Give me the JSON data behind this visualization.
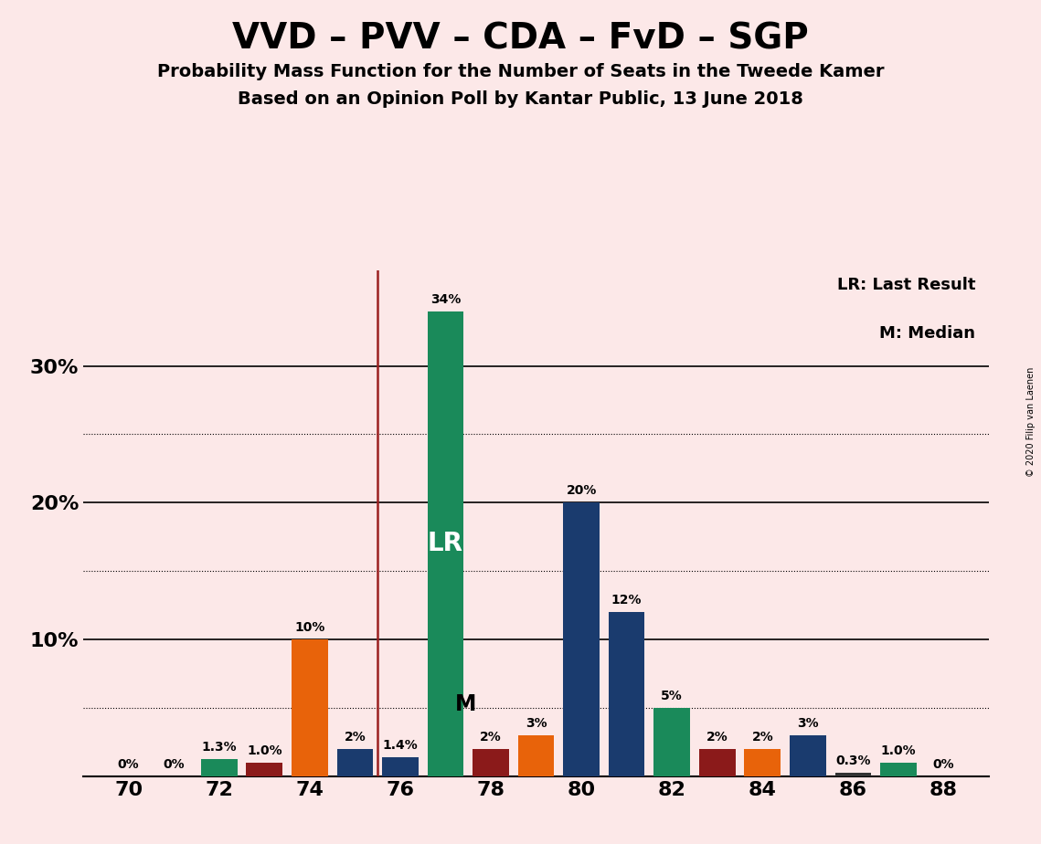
{
  "title": "VVD – PVV – CDA – FvD – SGP",
  "subtitle1": "Probability Mass Function for the Number of Seats in the Tweede Kamer",
  "subtitle2": "Based on an Opinion Poll by Kantar Public, 13 June 2018",
  "copyright": "© 2020 Filip van Laenen",
  "background_color": "#fce8e8",
  "lr_legend": "LR: Last Result",
  "median_legend": "M: Median",
  "lr_line_x": 75.5,
  "xlim": [
    69,
    89
  ],
  "ylim": [
    0,
    37
  ],
  "xticks": [
    70,
    72,
    74,
    76,
    78,
    80,
    82,
    84,
    86,
    88
  ],
  "yticks": [
    0,
    10,
    20,
    30
  ],
  "ytick_labels": [
    "",
    "10%",
    "20%",
    "30%"
  ],
  "dotted_yticks": [
    5,
    15,
    25
  ],
  "bar_width": 0.8,
  "bars": [
    {
      "x": 70,
      "value": 0.0,
      "color": "#333333",
      "label": "0%"
    },
    {
      "x": 71,
      "value": 0.0,
      "color": "#333333",
      "label": "0%"
    },
    {
      "x": 72,
      "value": 1.3,
      "color": "#1a8a5a",
      "label": "1.3%"
    },
    {
      "x": 73,
      "value": 1.0,
      "color": "#8b1a1a",
      "label": "1.0%"
    },
    {
      "x": 74,
      "value": 10.0,
      "color": "#e8630a",
      "label": "10%"
    },
    {
      "x": 75,
      "value": 2.0,
      "color": "#1a3b6e",
      "label": "2%"
    },
    {
      "x": 76,
      "value": 1.4,
      "color": "#1a3b6e",
      "label": "1.4%"
    },
    {
      "x": 77,
      "value": 34.0,
      "color": "#1a8a5a",
      "label": "34%",
      "bar_label": "LR"
    },
    {
      "x": 78,
      "value": 2.0,
      "color": "#8b1a1a",
      "label": "2%",
      "bar_label": "M"
    },
    {
      "x": 79,
      "value": 3.0,
      "color": "#e8630a",
      "label": "3%"
    },
    {
      "x": 80,
      "value": 20.0,
      "color": "#1a3b6e",
      "label": "20%"
    },
    {
      "x": 81,
      "value": 12.0,
      "color": "#1a3b6e",
      "label": "12%"
    },
    {
      "x": 82,
      "value": 5.0,
      "color": "#1a8a5a",
      "label": "5%"
    },
    {
      "x": 83,
      "value": 2.0,
      "color": "#8b1a1a",
      "label": "2%"
    },
    {
      "x": 84,
      "value": 2.0,
      "color": "#e8630a",
      "label": "2%"
    },
    {
      "x": 85,
      "value": 3.0,
      "color": "#1a3b6e",
      "label": "3%"
    },
    {
      "x": 86,
      "value": 0.3,
      "color": "#333333",
      "label": "0.3%"
    },
    {
      "x": 87,
      "value": 1.0,
      "color": "#1a8a5a",
      "label": "1.0%"
    },
    {
      "x": 88,
      "value": 0.0,
      "color": "#333333",
      "label": "0%"
    }
  ]
}
